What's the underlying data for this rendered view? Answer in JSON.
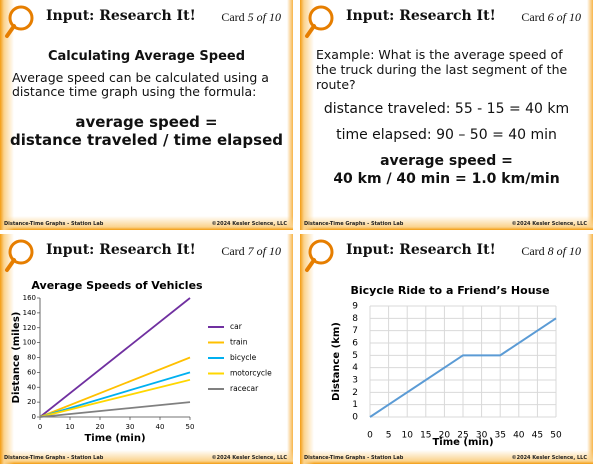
{
  "cards": [
    {
      "title": "Input: Research It!",
      "card_word": "Card",
      "card_num": "5 of 10",
      "heading": "Calculating Average Speed",
      "body": "Average speed can be calculated using a distance time graph using the formula:",
      "formula_1": "average speed =",
      "formula_2": "distance traveled / time elapsed",
      "footer_left": "Distance-Time Graphs - Station Lab",
      "footer_right": "©2024 Kesler Science, LLC"
    },
    {
      "title": "Input: Research It!",
      "card_word": "Card",
      "card_num": "6 of 10",
      "body": "Example: What is the average speed of the truck during the last segment of the route?",
      "line_1": "distance traveled: 55 - 15 = 40 km",
      "line_2": "time elapsed: 90 – 50 = 40 min",
      "formula_1": "average speed =",
      "formula_2": "40 km / 40 min = 1.0 km/min",
      "footer_left": "Distance-Time Graphs - Station Lab",
      "footer_right": "©2024 Kesler Science, LLC"
    },
    {
      "title": "Input: Research It!",
      "card_word": "Card",
      "card_num": "7 of 10",
      "footer_left": "Distance-Time Graphs - Station Lab",
      "footer_right": "©2024 Kesler Science, LLC"
    },
    {
      "title": "Input: Research It!",
      "card_word": "Card",
      "card_num": "8 of 10",
      "footer_left": "Distance-Time Graphs - Station Lab",
      "footer_right": "©2024 Kesler Science, LLC"
    }
  ],
  "chart_data": [
    {
      "type": "line",
      "title": "Average Speeds of Vehicles",
      "x_label": "Time (min)",
      "y_label": "Distance (miles)",
      "x": [
        0,
        50
      ],
      "series": [
        {
          "name": "car",
          "color": "#7030a0",
          "values": [
            0,
            160
          ]
        },
        {
          "name": "train",
          "color": "#ffc000",
          "values": [
            0,
            80
          ]
        },
        {
          "name": "bicycle",
          "color": "#00b0f0",
          "values": [
            0,
            60
          ]
        },
        {
          "name": "motorcycle",
          "color": "#ffd700",
          "values": [
            0,
            50
          ]
        },
        {
          "name": "racecar",
          "color": "#808080",
          "values": [
            0,
            20
          ]
        }
      ],
      "xlim": [
        0,
        50
      ],
      "xticks": [
        0,
        10,
        20,
        30,
        40,
        50
      ],
      "ylim": [
        0,
        160
      ],
      "yticks": [
        0,
        20,
        40,
        60,
        80,
        100,
        120,
        140,
        160
      ],
      "grid": false,
      "legend": "right"
    },
    {
      "type": "line",
      "title": "Bicycle Ride to a Friend’s House",
      "x_label": "Time (min)",
      "y_label": "Distance (km)",
      "x": [
        0,
        25,
        35,
        50
      ],
      "series": [
        {
          "name": "Distance",
          "color": "#5b9bd5",
          "values": [
            0,
            5,
            5,
            8
          ]
        }
      ],
      "xlim": [
        0,
        50
      ],
      "xticks": [
        0,
        5,
        10,
        15,
        20,
        25,
        30,
        35,
        40,
        45,
        50
      ],
      "ylim": [
        0,
        9
      ],
      "yticks": [
        0,
        1,
        2,
        3,
        4,
        5,
        6,
        7,
        8,
        9
      ],
      "grid": true,
      "legend": "none"
    }
  ]
}
